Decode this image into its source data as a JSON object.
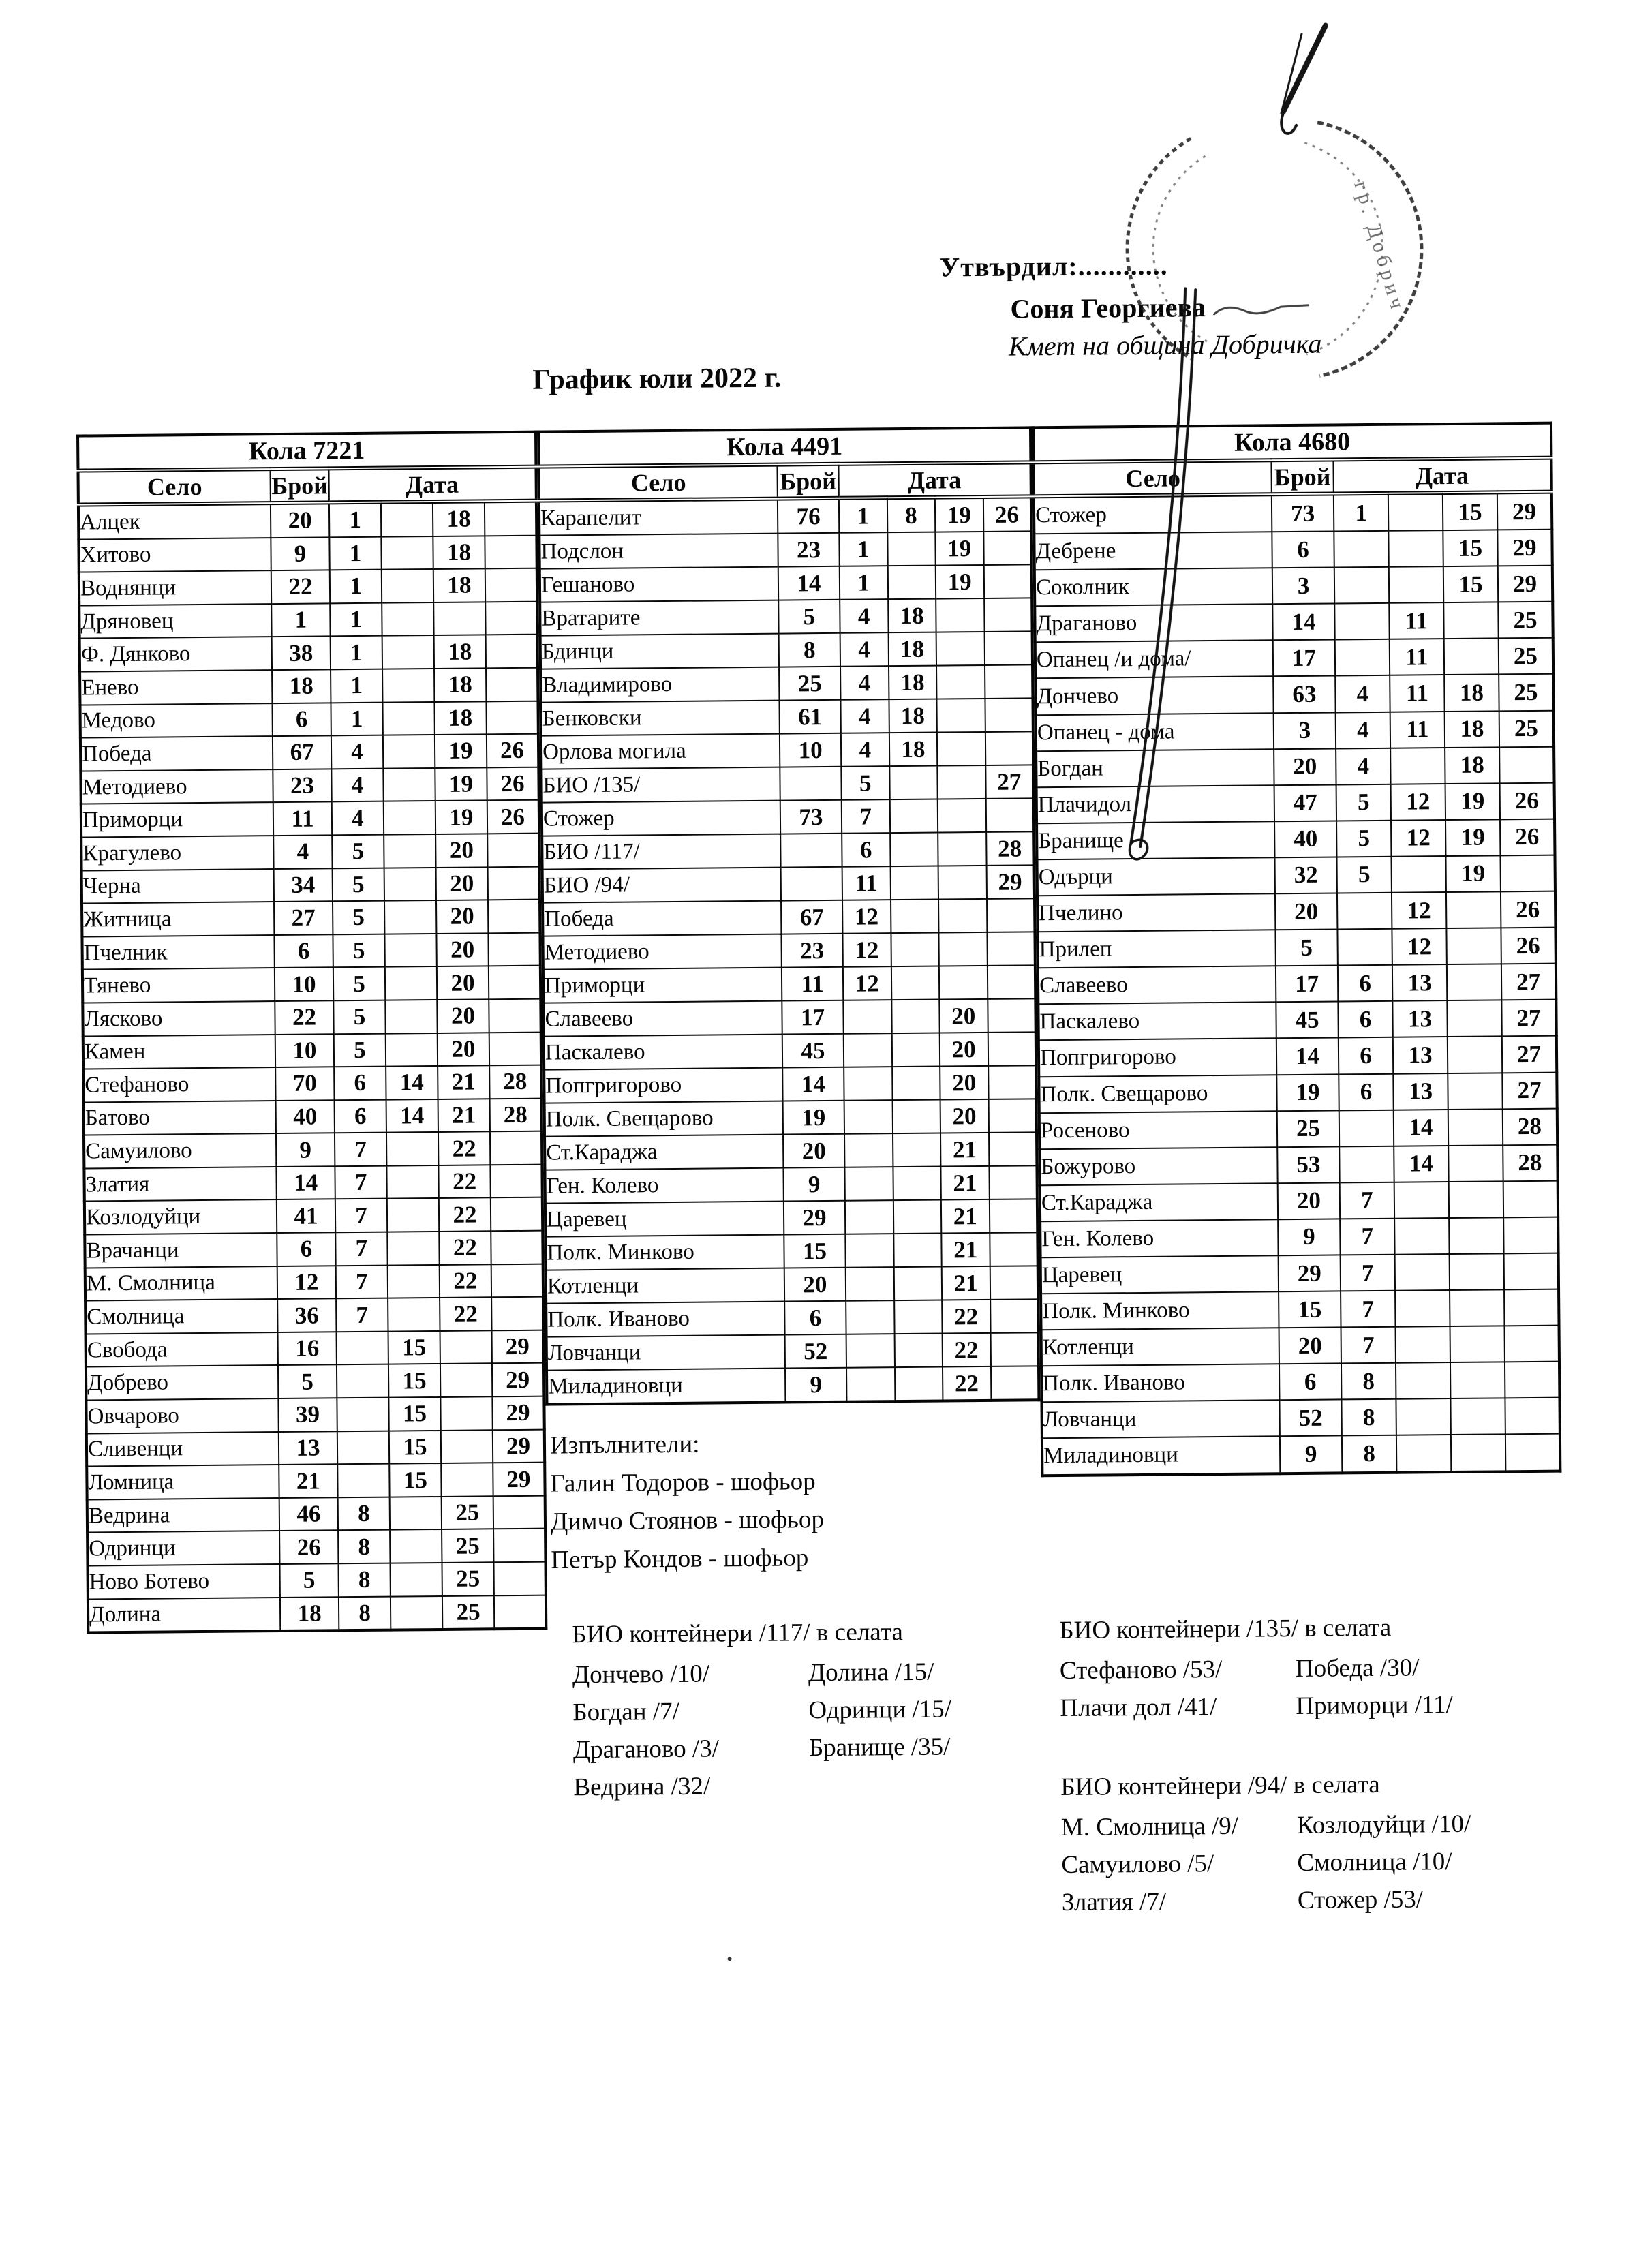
{
  "header": {
    "approve_label": "Утвърдил:............",
    "approver_name": "Соня Георгиева",
    "approver_title": "Кмет  на община Добричка",
    "doc_title": "График юли 2022 г.",
    "stamp_text": "гр. Добрич"
  },
  "columns": {
    "village": "Село",
    "count": "Брой",
    "date": "Дата"
  },
  "tables": [
    {
      "title": "Кола 7221",
      "rows": [
        [
          "Алцек",
          "20",
          "1",
          "",
          "18",
          ""
        ],
        [
          "Хитово",
          "9",
          "1",
          "",
          "18",
          ""
        ],
        [
          "Воднянци",
          "22",
          "1",
          "",
          "18",
          ""
        ],
        [
          "Дряновец",
          "1",
          "1",
          "",
          "",
          ""
        ],
        [
          "Ф. Дянково",
          "38",
          "1",
          "",
          "18",
          ""
        ],
        [
          "Енево",
          "18",
          "1",
          "",
          "18",
          ""
        ],
        [
          "Медово",
          "6",
          "1",
          "",
          "18",
          ""
        ],
        [
          "Победа",
          "67",
          "4",
          "",
          "19",
          "26"
        ],
        [
          "Методиево",
          "23",
          "4",
          "",
          "19",
          "26"
        ],
        [
          "Приморци",
          "11",
          "4",
          "",
          "19",
          "26"
        ],
        [
          "Крагулево",
          "4",
          "5",
          "",
          "20",
          ""
        ],
        [
          "Черна",
          "34",
          "5",
          "",
          "20",
          ""
        ],
        [
          "Житница",
          "27",
          "5",
          "",
          "20",
          ""
        ],
        [
          "Пчелник",
          "6",
          "5",
          "",
          "20",
          ""
        ],
        [
          "Тянево",
          "10",
          "5",
          "",
          "20",
          ""
        ],
        [
          "Лясково",
          "22",
          "5",
          "",
          "20",
          ""
        ],
        [
          "Камен",
          "10",
          "5",
          "",
          "20",
          ""
        ],
        [
          "Стефаново",
          "70",
          "6",
          "14",
          "21",
          "28"
        ],
        [
          "Батово",
          "40",
          "6",
          "14",
          "21",
          "28"
        ],
        [
          "Самуилово",
          "9",
          "7",
          "",
          "22",
          ""
        ],
        [
          "Златия",
          "14",
          "7",
          "",
          "22",
          ""
        ],
        [
          "Козлодуйци",
          "41",
          "7",
          "",
          "22",
          ""
        ],
        [
          "Врачанци",
          "6",
          "7",
          "",
          "22",
          ""
        ],
        [
          "М. Смолница",
          "12",
          "7",
          "",
          "22",
          ""
        ],
        [
          "Смолница",
          "36",
          "7",
          "",
          "22",
          ""
        ],
        [
          "Свобода",
          "16",
          "",
          "15",
          "",
          "29"
        ],
        [
          "Добрево",
          "5",
          "",
          "15",
          "",
          "29"
        ],
        [
          "Овчарово",
          "39",
          "",
          "15",
          "",
          "29"
        ],
        [
          "Сливенци",
          "13",
          "",
          "15",
          "",
          "29"
        ],
        [
          "Ломница",
          "21",
          "",
          "15",
          "",
          "29"
        ],
        [
          "Ведрина",
          "46",
          "8",
          "",
          "25",
          ""
        ],
        [
          "Одринци",
          "26",
          "8",
          "",
          "25",
          ""
        ],
        [
          "Ново Ботево",
          "5",
          "8",
          "",
          "25",
          ""
        ],
        [
          "Долина",
          "18",
          "8",
          "",
          "25",
          ""
        ]
      ]
    },
    {
      "title": "Кола 4491",
      "rows": [
        [
          "Карапелит",
          "76",
          "1",
          "8",
          "19",
          "26"
        ],
        [
          "Подслон",
          "23",
          "1",
          "",
          "19",
          ""
        ],
        [
          "Гешаново",
          "14",
          "1",
          "",
          "19",
          ""
        ],
        [
          "Вратарите",
          "5",
          "4",
          "18",
          "",
          ""
        ],
        [
          "Бдинци",
          "8",
          "4",
          "18",
          "",
          ""
        ],
        [
          "Владимирово",
          "25",
          "4",
          "18",
          "",
          ""
        ],
        [
          "Бенковски",
          "61",
          "4",
          "18",
          "",
          ""
        ],
        [
          "Орлова могила",
          "10",
          "4",
          "18",
          "",
          ""
        ],
        [
          "БИО /135/",
          "",
          "5",
          "",
          "",
          "27"
        ],
        [
          "Стожер",
          "73",
          "7",
          "",
          "",
          ""
        ],
        [
          "БИО /117/",
          "",
          "6",
          "",
          "",
          "28"
        ],
        [
          "БИО /94/",
          "",
          "11",
          "",
          "",
          "29"
        ],
        [
          "Победа",
          "67",
          "12",
          "",
          "",
          ""
        ],
        [
          "Методиево",
          "23",
          "12",
          "",
          "",
          ""
        ],
        [
          "Приморци",
          "11",
          "12",
          "",
          "",
          ""
        ],
        [
          "Славеево",
          "17",
          "",
          "",
          "20",
          ""
        ],
        [
          "Паскалево",
          "45",
          "",
          "",
          "20",
          ""
        ],
        [
          "Попгригорово",
          "14",
          "",
          "",
          "20",
          ""
        ],
        [
          "Полк. Свещарово",
          "19",
          "",
          "",
          "20",
          ""
        ],
        [
          "Ст.Караджа",
          "20",
          "",
          "",
          "21",
          ""
        ],
        [
          "Ген. Колево",
          "9",
          "",
          "",
          "21",
          ""
        ],
        [
          "Царевец",
          "29",
          "",
          "",
          "21",
          ""
        ],
        [
          "Полк. Минково",
          "15",
          "",
          "",
          "21",
          ""
        ],
        [
          "Котленци",
          "20",
          "",
          "",
          "21",
          ""
        ],
        [
          "Полк. Иваново",
          "6",
          "",
          "",
          "22",
          ""
        ],
        [
          "Ловчанци",
          "52",
          "",
          "",
          "22",
          ""
        ],
        [
          "Миладиновци",
          "9",
          "",
          "",
          "22",
          ""
        ]
      ]
    },
    {
      "title": "Кола 4680",
      "rows": [
        [
          "Стожер",
          "73",
          "1",
          "",
          "15",
          "29"
        ],
        [
          "Дебрене",
          "6",
          "",
          "",
          "15",
          "29"
        ],
        [
          "Соколник",
          "3",
          "",
          "",
          "15",
          "29"
        ],
        [
          "Драганово",
          "14",
          "",
          "11",
          "",
          "25"
        ],
        [
          "Опанец /и дома/",
          "17",
          "",
          "11",
          "",
          "25"
        ],
        [
          "Дончево",
          "63",
          "4",
          "11",
          "18",
          "25"
        ],
        [
          "Опанец - дома",
          "3",
          "4",
          "11",
          "18",
          "25"
        ],
        [
          "Богдан",
          "20",
          "4",
          "",
          "18",
          ""
        ],
        [
          "Плачидол",
          "47",
          "5",
          "12",
          "19",
          "26"
        ],
        [
          "Бранище",
          "40",
          "5",
          "12",
          "19",
          "26"
        ],
        [
          "Одърци",
          "32",
          "5",
          "",
          "19",
          ""
        ],
        [
          "Пчелино",
          "20",
          "",
          "12",
          "",
          "26"
        ],
        [
          "Прилеп",
          "5",
          "",
          "12",
          "",
          "26"
        ],
        [
          "Славеево",
          "17",
          "6",
          "13",
          "",
          "27"
        ],
        [
          "Паскалево",
          "45",
          "6",
          "13",
          "",
          "27"
        ],
        [
          "Попгригорово",
          "14",
          "6",
          "13",
          "",
          "27"
        ],
        [
          "Полк. Свещарово",
          "19",
          "6",
          "13",
          "",
          "27"
        ],
        [
          "Росеново",
          "25",
          "",
          "14",
          "",
          "28"
        ],
        [
          "Божурово",
          "53",
          "",
          "14",
          "",
          "28"
        ],
        [
          "Ст.Караджа",
          "20",
          "7",
          "",
          "",
          ""
        ],
        [
          "Ген. Колево",
          "9",
          "7",
          "",
          "",
          ""
        ],
        [
          "Царевец",
          "29",
          "7",
          "",
          "",
          ""
        ],
        [
          "Полк. Минково",
          "15",
          "7",
          "",
          "",
          ""
        ],
        [
          "Котленци",
          "20",
          "7",
          "",
          "",
          ""
        ],
        [
          "Полк. Иваново",
          "6",
          "8",
          "",
          "",
          ""
        ],
        [
          "Ловчанци",
          "52",
          "8",
          "",
          "",
          ""
        ],
        [
          "Миладиновци",
          "9",
          "8",
          "",
          "",
          ""
        ]
      ]
    }
  ],
  "executors": {
    "heading": "Изпълнители:",
    "items": [
      "Галин Тодоров - шофьор",
      "Димчо Стоянов - шофьор",
      "Петър Кондов - шофьор"
    ]
  },
  "bio_blocks": [
    {
      "title": "БИО контейнери /117/ в селата",
      "rows": [
        [
          "Дончево /10/",
          "Долина /15/"
        ],
        [
          "Богдан /7/",
          "Одринци /15/"
        ],
        [
          "Драганово /3/",
          "Бранище /35/"
        ],
        [
          "Ведрина /32/",
          ""
        ]
      ]
    },
    {
      "title": "БИО контейнери /135/ в селата",
      "rows": [
        [
          "Стефаново /53/",
          "Победа /30/"
        ],
        [
          "Плачи дол /41/",
          "Приморци /11/"
        ]
      ]
    },
    {
      "title": "БИО контейнери /94/ в селата",
      "rows": [
        [
          "М. Смолница /9/",
          "Козлодуйци /10/"
        ],
        [
          "Самуилово /5/",
          "Смолница /10/"
        ],
        [
          "Златия /7/",
          "Стожер /53/"
        ]
      ]
    }
  ]
}
